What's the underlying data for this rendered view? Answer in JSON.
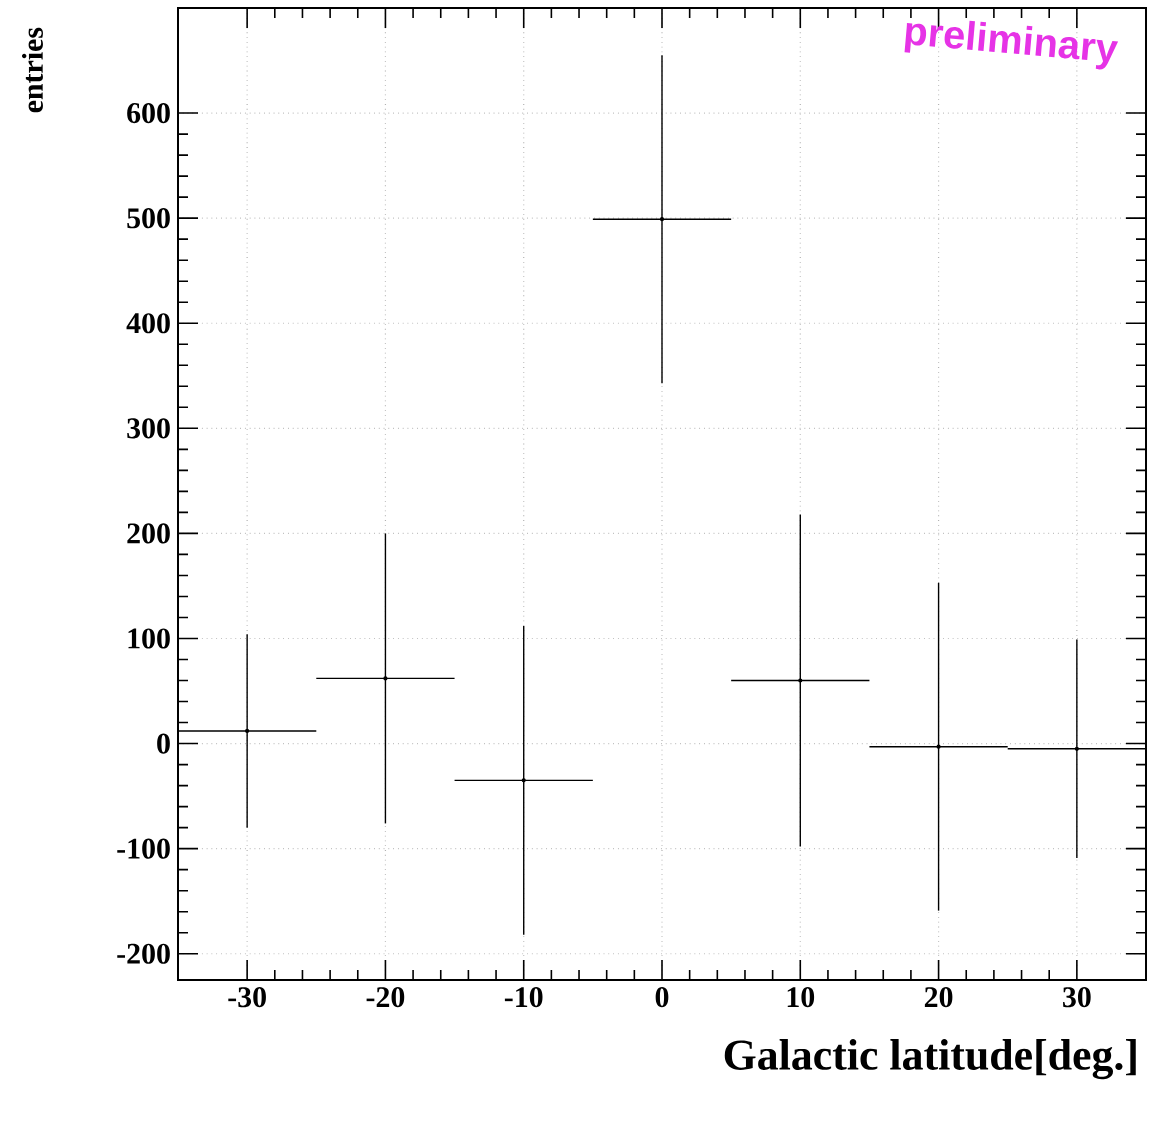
{
  "chart_data": {
    "type": "scatter",
    "xlabel": "Galactic latitude[deg.]",
    "ylabel": "entries",
    "annotations": [
      "preliminary"
    ],
    "x": [
      -30,
      -20,
      -10,
      0,
      10,
      20,
      30
    ],
    "series": [
      {
        "color": "#000000",
        "values": [
          12,
          62,
          -35,
          499,
          60,
          -3,
          -5
        ],
        "errors": [
          92,
          138,
          147,
          156,
          158,
          156,
          104
        ],
        "xerrors": [
          5,
          5,
          5,
          5,
          5,
          5,
          5
        ]
      }
    ],
    "xlim": [
      -35,
      35
    ],
    "ylim": [
      -225,
      700
    ],
    "xticks": [
      -30,
      -20,
      -10,
      0,
      10,
      20,
      30
    ],
    "yticks": [
      -200,
      -100,
      0,
      100,
      200,
      300,
      400,
      500,
      600
    ],
    "grid": true,
    "marker": "circle"
  }
}
